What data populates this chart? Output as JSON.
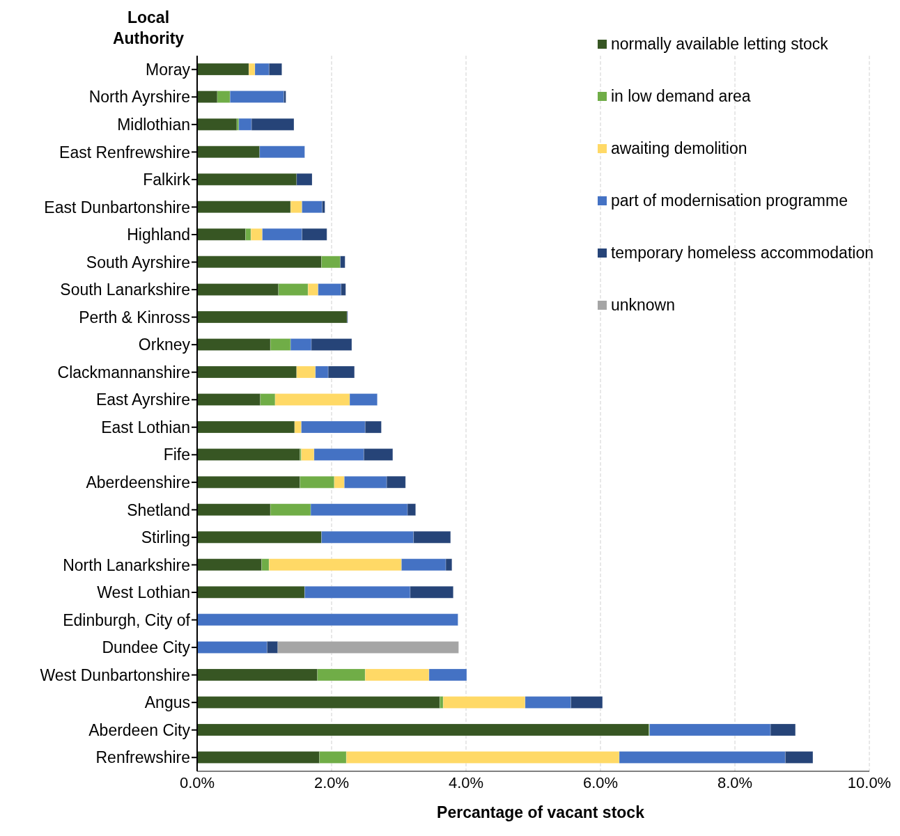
{
  "chart_data": {
    "type": "bar",
    "orientation": "horizontal",
    "stacked": true,
    "ylabel": "Local Authority",
    "xlabel": "Percantage of vacant stock",
    "categories": [
      "Moray",
      "North Ayrshire",
      "Midlothian",
      "East Renfrewshire",
      "Falkirk",
      "East Dunbartonshire",
      "Highland",
      "South Ayrshire",
      "South Lanarkshire",
      "Perth & Kinross",
      "Orkney",
      "Clackmannanshire",
      "East Ayrshire",
      "East Lothian",
      "Fife",
      "Aberdeenshire",
      "Shetland",
      "Stirling",
      "North Lanarkshire",
      "West Lothian",
      "Edinburgh, City of",
      "Dundee City",
      "West Dunbartonshire",
      "Angus",
      "Aberdeen City",
      "Renfrewshire"
    ],
    "series": [
      {
        "name": "normally available letting stock",
        "color": "#375623",
        "values": [
          0.77,
          0.3,
          0.59,
          0.93,
          1.48,
          1.39,
          0.72,
          1.85,
          1.21,
          2.23,
          1.09,
          1.48,
          0.94,
          1.45,
          1.53,
          1.53,
          1.09,
          1.85,
          0.96,
          1.6,
          null,
          null,
          1.79,
          3.61,
          6.72,
          1.82
        ]
      },
      {
        "name": "in low demand area",
        "color": "#70ad47",
        "values": [
          null,
          0.19,
          0.03,
          null,
          null,
          null,
          0.08,
          0.28,
          0.44,
          null,
          0.3,
          null,
          0.22,
          null,
          0.02,
          0.51,
          0.6,
          null,
          0.11,
          null,
          null,
          null,
          0.71,
          0.05,
          0.01,
          0.4
        ]
      },
      {
        "name": "awaiting demolition",
        "color": "#ffd966",
        "values": [
          0.09,
          null,
          null,
          null,
          null,
          0.17,
          0.17,
          null,
          0.15,
          null,
          null,
          0.28,
          1.11,
          0.1,
          0.19,
          0.15,
          null,
          null,
          1.97,
          null,
          null,
          null,
          0.95,
          1.22,
          null,
          4.06
        ]
      },
      {
        "name": "part of modernisation programme",
        "color": "#4472c4",
        "values": [
          0.21,
          0.8,
          0.19,
          0.67,
          null,
          0.3,
          0.59,
          null,
          0.34,
          null,
          0.31,
          0.19,
          0.41,
          0.95,
          0.74,
          0.63,
          1.44,
          1.37,
          0.66,
          1.57,
          3.88,
          1.04,
          0.56,
          0.68,
          1.8,
          2.47
        ]
      },
      {
        "name": "temporary homeless accommodation",
        "color": "#264478",
        "values": [
          0.19,
          0.03,
          0.63,
          null,
          0.23,
          0.04,
          0.37,
          0.07,
          0.07,
          0.01,
          0.6,
          0.39,
          null,
          0.24,
          0.43,
          0.28,
          0.12,
          0.55,
          0.09,
          0.64,
          null,
          0.16,
          null,
          0.47,
          0.37,
          0.41
        ]
      },
      {
        "name": "unknown",
        "color": "#a5a5a5",
        "values": [
          null,
          null,
          null,
          null,
          null,
          null,
          null,
          null,
          null,
          null,
          null,
          null,
          null,
          null,
          null,
          null,
          null,
          null,
          null,
          null,
          null,
          2.69,
          null,
          null,
          null,
          null
        ]
      }
    ],
    "xlim": [
      0,
      10
    ],
    "xticks": [
      {
        "value": 0,
        "label": "0.0%"
      },
      {
        "value": 2,
        "label": "2.0%"
      },
      {
        "value": 4,
        "label": "4.0%"
      },
      {
        "value": 6,
        "label": "6.0%"
      },
      {
        "value": 8,
        "label": "8.0%"
      },
      {
        "value": 10,
        "label": "10.0%"
      }
    ],
    "grid": "x",
    "legend": "top right"
  }
}
